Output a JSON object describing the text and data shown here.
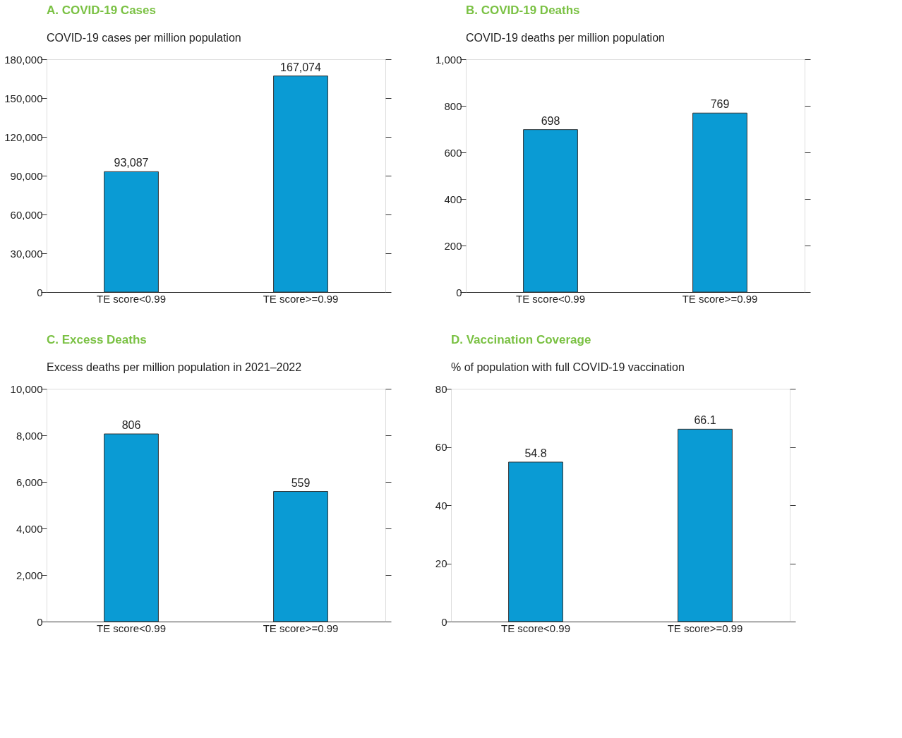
{
  "chart_data": [
    {
      "type": "bar",
      "title": "A. COVID-19 Cases",
      "ylabel": "COVID-19 cases per million population",
      "categories": [
        "TE score<0.99",
        "TE score>=0.99"
      ],
      "values": [
        93087,
        167074
      ],
      "color": "#0a9bd4",
      "ylim": [
        0,
        180000
      ],
      "yticks": [
        0,
        {
          "value": 30000,
          "label": "30,000"
        },
        {
          "value": 60000,
          "label": "60,000"
        },
        {
          "value": 90000,
          "label": "90,000"
        },
        {
          "value": 120000,
          "label": "120,000"
        },
        {
          "value": 150000,
          "label": "150,000"
        },
        {
          "value": 180000,
          "label": "180,000"
        }
      ],
      "value_labels": [
        "93,087",
        "167,074"
      ],
      "grid": false
    },
    {
      "type": "bar",
      "title": "B. COVID-19 Deaths",
      "ylabel": "COVID-19 deaths per million population",
      "categories": [
        "TE score<0.99",
        "TE score>=0.99"
      ],
      "values": [
        698,
        769
      ],
      "color": "#0a9bd4",
      "ylim": [
        0,
        1000
      ],
      "yticks": [
        0,
        200,
        400,
        600,
        800,
        {
          "value": 1000,
          "label": "1,000"
        }
      ],
      "data_labels": true,
      "grid": false
    },
    {
      "type": "bar",
      "title": "C. Excess Deaths",
      "ylabel": "Excess deaths per million population in 2021–2022",
      "categories": [
        "TE score<0.99",
        "TE score>=0.99"
      ],
      "values": [
        8060,
        5590
      ],
      "annotations": [
        {
          "text": "806",
          "x": "TE score<0.99",
          "y": 8060
        },
        {
          "text": "559",
          "x": "TE score>=0.99",
          "y": 5590
        }
      ],
      "color": "#0a9bd4",
      "ylim": [
        0,
        10000
      ],
      "yticks": [
        0,
        {
          "value": 2000,
          "label": "2,000"
        },
        {
          "value": 4000,
          "label": "4,000"
        },
        {
          "value": 6000,
          "label": "6,000"
        },
        {
          "value": 8000,
          "label": "8,000"
        },
        {
          "value": 10000,
          "label": "10,000"
        }
      ],
      "grid": false
    },
    {
      "type": "bar",
      "title": "D. Vaccination Coverage",
      "ylabel": "% of population with full COVID-19 vaccination",
      "categories": [
        "TE score<0.99",
        "TE score>=0.99"
      ],
      "values": [
        54.8,
        66.1
      ],
      "color": "#0a9bd4",
      "ylim": [
        0,
        80
      ],
      "yticks": [
        0,
        20,
        40,
        60,
        80
      ],
      "data_labels": true,
      "grid": false
    }
  ]
}
